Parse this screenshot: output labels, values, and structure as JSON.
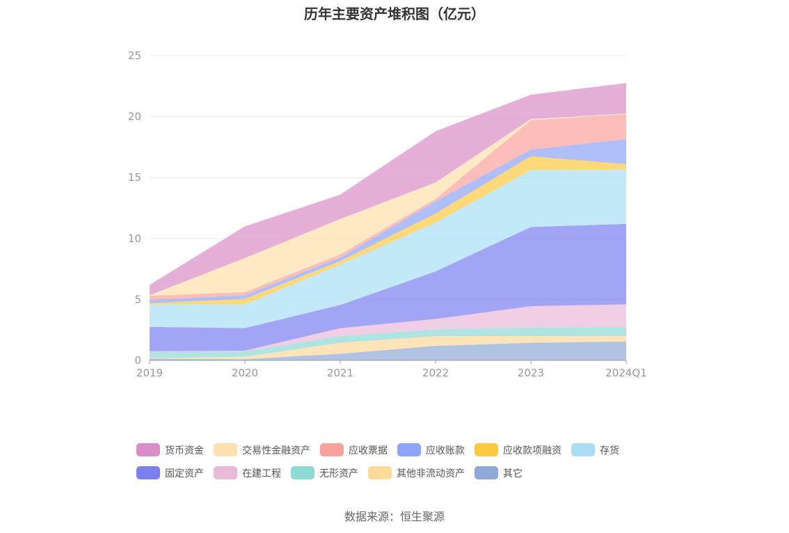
{
  "chart_data": {
    "type": "area",
    "stacked": true,
    "title": "历年主要资产堆积图（亿元）",
    "x": [
      "2019",
      "2020",
      "2021",
      "2022",
      "2023",
      "2024Q1"
    ],
    "ylim": [
      0,
      25
    ],
    "yticks": [
      "0",
      "5",
      "10",
      "15",
      "20",
      "25"
    ],
    "grid": true,
    "legend_position": "bottom",
    "series": [
      {
        "name": "其它",
        "color": "#8fa9d6",
        "values": [
          0.15,
          0.1,
          0.55,
          1.2,
          1.45,
          1.55
        ]
      },
      {
        "name": "其他非流动资产",
        "color": "#fdd99a",
        "values": [
          0.05,
          0.2,
          0.9,
          0.8,
          0.55,
          0.45
        ]
      },
      {
        "name": "无形资产",
        "color": "#8dd9d6",
        "values": [
          0.5,
          0.45,
          0.55,
          0.55,
          0.7,
          0.75
        ]
      },
      {
        "name": "在建工程",
        "color": "#e9b9da",
        "values": [
          0.05,
          0.05,
          0.65,
          0.85,
          1.75,
          1.85
        ]
      },
      {
        "name": "固定资产",
        "color": "#7b7ff0",
        "values": [
          2.0,
          1.85,
          1.9,
          3.9,
          6.5,
          6.6
        ]
      },
      {
        "name": "存货",
        "color": "#a9def5",
        "values": [
          1.85,
          1.95,
          3.3,
          4.0,
          4.65,
          4.45
        ]
      },
      {
        "name": "应收款项融资",
        "color": "#fdc941",
        "values": [
          0.1,
          0.45,
          0.3,
          0.75,
          1.15,
          0.45
        ]
      },
      {
        "name": "应收账款",
        "color": "#8ea4f6",
        "values": [
          0.25,
          0.3,
          0.3,
          1.0,
          0.55,
          2.05
        ]
      },
      {
        "name": "应收票据",
        "color": "#f9a29b",
        "values": [
          0.35,
          0.25,
          0.25,
          0.2,
          2.4,
          2.05
        ]
      },
      {
        "name": "交易性金融资产",
        "color": "#fde0ad",
        "values": [
          0.05,
          2.8,
          2.9,
          1.35,
          0.1,
          0.05
        ]
      },
      {
        "name": "货币资金",
        "color": "#dc8dc7",
        "values": [
          0.85,
          2.6,
          2.0,
          4.2,
          2.0,
          2.5
        ]
      }
    ]
  },
  "legend_rows": [
    [
      {
        "name": "货币资金",
        "color": "#dc8dc7"
      },
      {
        "name": "交易性金融资产",
        "color": "#fde0ad"
      },
      {
        "name": "应收票据",
        "color": "#f9a29b"
      },
      {
        "name": "应收账款",
        "color": "#8ea4f6"
      },
      {
        "name": "应收款项融资",
        "color": "#fdc941"
      },
      {
        "name": "存货",
        "color": "#a9def5"
      }
    ],
    [
      {
        "name": "固定资产",
        "color": "#7b7ff0"
      },
      {
        "name": "在建工程",
        "color": "#e9b9da"
      },
      {
        "name": "无形资产",
        "color": "#8dd9d6"
      },
      {
        "name": "其他非流动资产",
        "color": "#fdd99a"
      },
      {
        "name": "其它",
        "color": "#8fa9d6"
      }
    ]
  ],
  "source": "数据来源：恒生聚源"
}
